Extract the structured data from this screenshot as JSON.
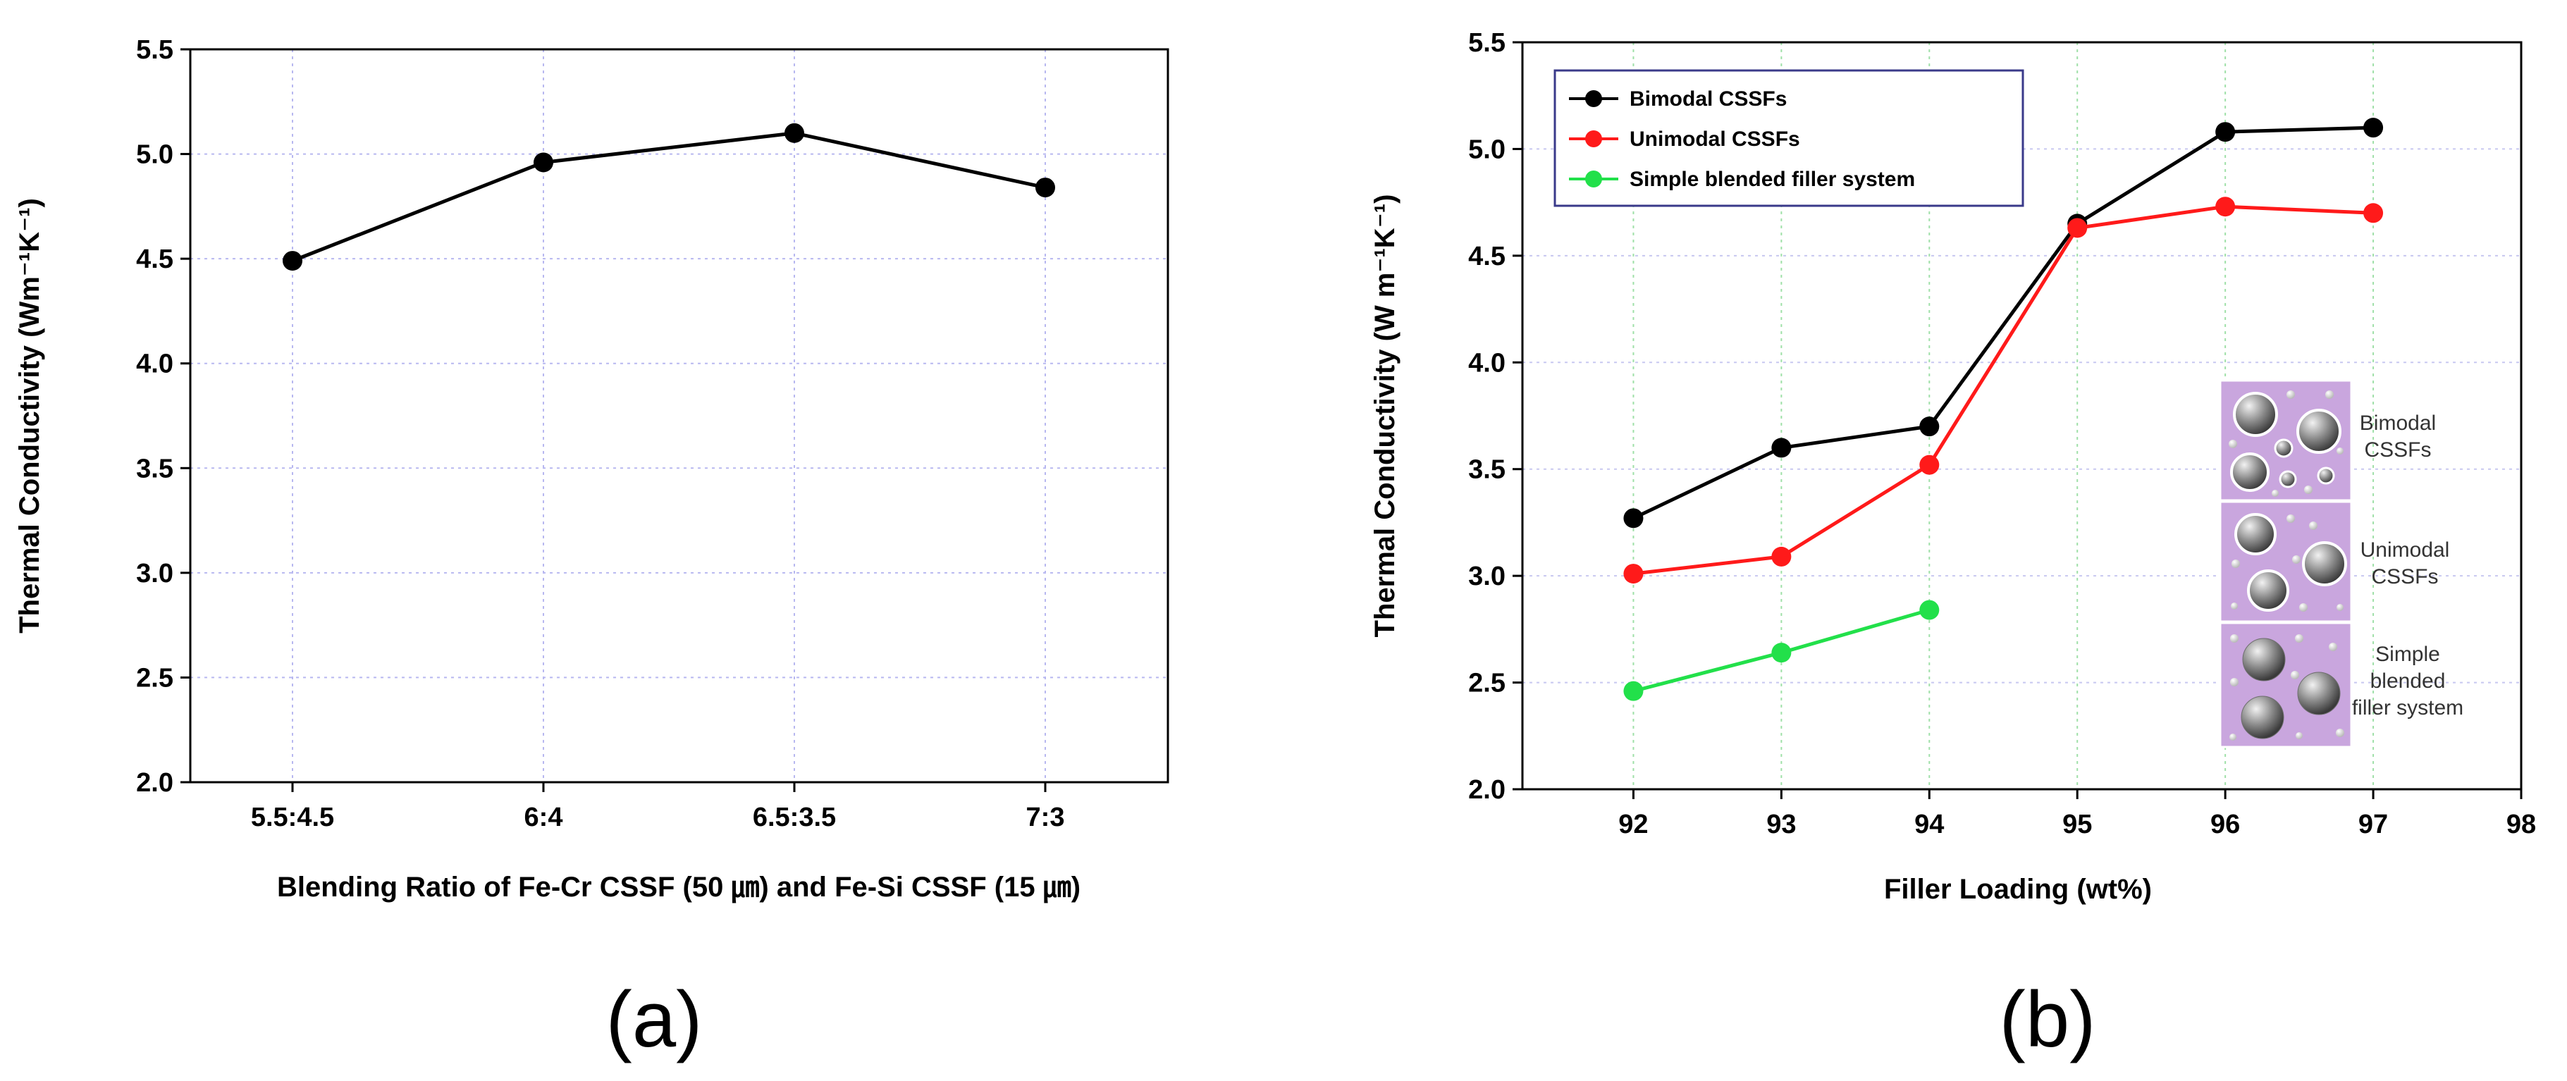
{
  "chart_data": [
    {
      "type": "line",
      "panel": "(a)",
      "title": "",
      "xlabel": "Blending Ratio of Fe-Cr CSSF (50 ㎛) and Fe-Si CSSF (15 ㎛)",
      "ylabel": "Thermal Conductivity (Wm⁻¹K⁻¹)",
      "categories": [
        "5.5:4.5",
        "6:4",
        "6.5:3.5",
        "7:3"
      ],
      "series": [
        {
          "name": "Thermal Conductivity",
          "color": "#000000",
          "values": [
            4.49,
            4.96,
            5.1,
            4.84
          ]
        }
      ],
      "ylim": [
        2.0,
        5.5
      ],
      "yticks": [
        "2.0",
        "2.5",
        "3.0",
        "3.5",
        "4.0",
        "4.5",
        "5.0",
        "5.5"
      ],
      "grid": true,
      "legend": "none"
    },
    {
      "type": "line",
      "panel": "(b)",
      "title": "",
      "xlabel": "Filler Loading (wt%)",
      "ylabel": "Thermal Conductivity (W m⁻¹K⁻¹)",
      "x": [
        92,
        93,
        94,
        95,
        96,
        97
      ],
      "xticks": [
        "92",
        "93",
        "94",
        "95",
        "96",
        "97",
        "98"
      ],
      "xlim": [
        91.25,
        98.0
      ],
      "series": [
        {
          "name": "Bimodal CSSFs",
          "color": "#000000",
          "x": [
            92,
            93,
            94,
            95,
            96,
            97
          ],
          "values": [
            3.27,
            3.6,
            3.7,
            4.65,
            5.08,
            5.1
          ]
        },
        {
          "name": "Unimodal CSSFs",
          "color": "#ff1a1a",
          "x": [
            92,
            93,
            94,
            95,
            96,
            97
          ],
          "values": [
            3.01,
            3.09,
            3.52,
            4.63,
            4.73,
            4.7
          ]
        },
        {
          "name": "Simple blended filler system",
          "color": "#22e04a",
          "x": [
            92,
            93,
            94
          ],
          "values": [
            2.46,
            2.64,
            2.84
          ]
        }
      ],
      "ylim": [
        2.0,
        5.5
      ],
      "yticks": [
        "2.0",
        "2.5",
        "3.0",
        "3.5",
        "4.0",
        "4.5",
        "5.0",
        "5.5"
      ],
      "grid": true,
      "legend": "top-left",
      "inset_annotations": [
        [
          "Bimodal",
          "CSSFs"
        ],
        [
          "Unimodal",
          "CSSFs"
        ],
        [
          "Simple",
          "blended",
          "filler system"
        ]
      ]
    }
  ],
  "panel_labels": {
    "a": "(a)",
    "b": "(b)"
  }
}
